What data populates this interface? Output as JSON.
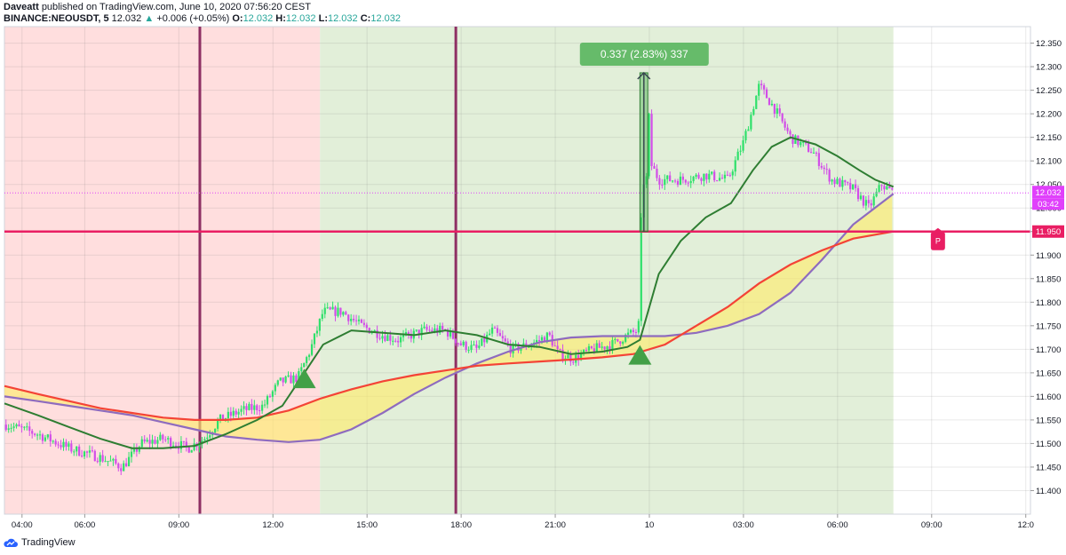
{
  "header": {
    "publisher": "Daveatt",
    "published_text": "published on TradingView.com, June 10, 2020 07:56:20 CEST",
    "symbol": "BINANCE:NEOUSDT, 5",
    "last": "12.032",
    "change_arrow": "▲",
    "change": "+0.006 (+0.05%)",
    "o_label": "O:",
    "o": "12.032",
    "h_label": "H:",
    "h": "12.032",
    "l_label": "L:",
    "l": "12.032",
    "c_label": "C:",
    "c": "12.032"
  },
  "measure_label": "0.337 (2.83%) 337",
  "price_badge": "12.032",
  "countdown_badge": "03:42",
  "marker_label": "P",
  "footer": {
    "brand": "TradingView"
  },
  "colors": {
    "up": "#26a69a",
    "price_badge": "#e040fb",
    "hline": "#e91e63",
    "fast_ma": "#2e7d32",
    "slow_upper": "#f44336",
    "slow_lower": "#8e6bbf",
    "cloud": "#fdeb6f",
    "bg_red": "#ffdede",
    "bg_green": "#e2efd9",
    "session_line": "#8e2f63"
  },
  "chart_data": {
    "type": "candlestick",
    "symbol": "NEOUSDT",
    "exchange": "BINANCE",
    "interval_minutes": 5,
    "y_ticks": [
      "12.350",
      "12.300",
      "12.250",
      "12.200",
      "12.150",
      "12.100",
      "12.050",
      "12.000",
      "11.950",
      "11.900",
      "11.850",
      "11.800",
      "11.750",
      "11.700",
      "11.650",
      "11.600",
      "11.550",
      "11.500",
      "11.450",
      "11.400"
    ],
    "ylim": [
      11.35,
      12.385
    ],
    "x_ticks": [
      "04:00",
      "06:00",
      "09:00",
      "12:00",
      "15:00",
      "18:00",
      "21:00",
      "10",
      "03:00",
      "06:00",
      "09:00",
      "12:0"
    ],
    "x_tick_hours": [
      4,
      6,
      9,
      12,
      15,
      18,
      21,
      24,
      27,
      30,
      33,
      36
    ],
    "xlim_hours": [
      3.44,
      36.15
    ],
    "data_end_hour": 31.78,
    "horizontal_level": 11.95,
    "last_price": 12.032,
    "session_lines_hours": [
      9.67,
      17.83
    ],
    "background_zones": [
      {
        "from_hour": 3.44,
        "to_hour": 13.5,
        "color": "red"
      },
      {
        "from_hour": 13.5,
        "to_hour": 31.78,
        "color": "green"
      }
    ],
    "close_path": [
      [
        3.5,
        11.54
      ],
      [
        4.5,
        11.52
      ],
      [
        5.5,
        11.49
      ],
      [
        6.5,
        11.47
      ],
      [
        7.2,
        11.45
      ],
      [
        7.8,
        11.5
      ],
      [
        8.5,
        11.51
      ],
      [
        9.3,
        11.49
      ],
      [
        9.8,
        11.51
      ],
      [
        10.3,
        11.55
      ],
      [
        11.0,
        11.57
      ],
      [
        11.7,
        11.58
      ],
      [
        12.2,
        11.63
      ],
      [
        12.8,
        11.64
      ],
      [
        13.2,
        11.7
      ],
      [
        13.6,
        11.78
      ],
      [
        14.2,
        11.78
      ],
      [
        14.8,
        11.75
      ],
      [
        15.5,
        11.73
      ],
      [
        16.0,
        11.72
      ],
      [
        16.8,
        11.74
      ],
      [
        17.5,
        11.74
      ],
      [
        18.0,
        11.71
      ],
      [
        18.5,
        11.7
      ],
      [
        19.0,
        11.74
      ],
      [
        19.6,
        11.7
      ],
      [
        20.2,
        11.71
      ],
      [
        20.8,
        11.73
      ],
      [
        21.1,
        11.69
      ],
      [
        21.6,
        11.68
      ],
      [
        22.2,
        11.7
      ],
      [
        22.8,
        11.71
      ],
      [
        23.3,
        11.73
      ],
      [
        23.65,
        11.74
      ],
      [
        23.8,
        12.02
      ],
      [
        24.0,
        12.1
      ],
      [
        24.3,
        12.06
      ],
      [
        25.0,
        12.06
      ],
      [
        25.8,
        12.07
      ],
      [
        26.5,
        12.06
      ],
      [
        27.0,
        12.14
      ],
      [
        27.5,
        12.26
      ],
      [
        28.0,
        12.21
      ],
      [
        28.5,
        12.15
      ],
      [
        29.2,
        12.12
      ],
      [
        29.8,
        12.06
      ],
      [
        30.5,
        12.04
      ],
      [
        31.0,
        12.0
      ],
      [
        31.4,
        12.05
      ],
      [
        31.78,
        12.032
      ]
    ],
    "fast_ma": [
      [
        3.44,
        11.585
      ],
      [
        4.5,
        11.56
      ],
      [
        5.5,
        11.535
      ],
      [
        6.5,
        11.51
      ],
      [
        7.5,
        11.49
      ],
      [
        8.5,
        11.49
      ],
      [
        9.5,
        11.495
      ],
      [
        10.5,
        11.52
      ],
      [
        11.5,
        11.55
      ],
      [
        12.3,
        11.58
      ],
      [
        13.0,
        11.65
      ],
      [
        13.6,
        11.71
      ],
      [
        14.5,
        11.74
      ],
      [
        15.5,
        11.735
      ],
      [
        16.5,
        11.73
      ],
      [
        17.5,
        11.74
      ],
      [
        18.5,
        11.73
      ],
      [
        19.5,
        11.71
      ],
      [
        20.5,
        11.705
      ],
      [
        21.5,
        11.69
      ],
      [
        22.5,
        11.695
      ],
      [
        23.3,
        11.705
      ],
      [
        23.7,
        11.72
      ],
      [
        24.3,
        11.86
      ],
      [
        25.0,
        11.93
      ],
      [
        25.8,
        11.98
      ],
      [
        26.6,
        12.01
      ],
      [
        27.3,
        12.08
      ],
      [
        27.9,
        12.13
      ],
      [
        28.5,
        12.15
      ],
      [
        29.3,
        12.135
      ],
      [
        30.0,
        12.11
      ],
      [
        30.7,
        12.08
      ],
      [
        31.2,
        12.06
      ],
      [
        31.78,
        12.045
      ]
    ],
    "slow_upper": [
      [
        3.44,
        11.622
      ],
      [
        4.5,
        11.605
      ],
      [
        5.5,
        11.59
      ],
      [
        6.5,
        11.575
      ],
      [
        7.5,
        11.565
      ],
      [
        8.5,
        11.555
      ],
      [
        9.5,
        11.55
      ],
      [
        10.5,
        11.55
      ],
      [
        11.5,
        11.555
      ],
      [
        12.5,
        11.57
      ],
      [
        13.5,
        11.595
      ],
      [
        14.5,
        11.615
      ],
      [
        15.5,
        11.632
      ],
      [
        16.5,
        11.645
      ],
      [
        17.5,
        11.655
      ],
      [
        18.5,
        11.665
      ],
      [
        19.5,
        11.67
      ],
      [
        20.5,
        11.674
      ],
      [
        21.5,
        11.678
      ],
      [
        22.5,
        11.683
      ],
      [
        23.5,
        11.69
      ],
      [
        24.5,
        11.71
      ],
      [
        25.5,
        11.75
      ],
      [
        26.5,
        11.79
      ],
      [
        27.5,
        11.84
      ],
      [
        28.5,
        11.88
      ],
      [
        29.5,
        11.91
      ],
      [
        30.5,
        11.935
      ],
      [
        31.78,
        11.95
      ]
    ],
    "slow_lower": [
      [
        3.44,
        11.6
      ],
      [
        4.5,
        11.59
      ],
      [
        5.5,
        11.58
      ],
      [
        6.5,
        11.57
      ],
      [
        7.5,
        11.56
      ],
      [
        8.5,
        11.545
      ],
      [
        9.5,
        11.53
      ],
      [
        10.5,
        11.515
      ],
      [
        11.5,
        11.508
      ],
      [
        12.5,
        11.503
      ],
      [
        13.5,
        11.508
      ],
      [
        14.5,
        11.53
      ],
      [
        15.5,
        11.565
      ],
      [
        16.5,
        11.605
      ],
      [
        17.5,
        11.64
      ],
      [
        18.5,
        11.67
      ],
      [
        19.5,
        11.695
      ],
      [
        20.5,
        11.715
      ],
      [
        21.5,
        11.725
      ],
      [
        22.5,
        11.728
      ],
      [
        23.5,
        11.728
      ],
      [
        24.5,
        11.728
      ],
      [
        25.5,
        11.735
      ],
      [
        26.5,
        11.75
      ],
      [
        27.5,
        11.775
      ],
      [
        28.5,
        11.82
      ],
      [
        29.5,
        11.89
      ],
      [
        30.5,
        11.965
      ],
      [
        31.78,
        12.03
      ]
    ],
    "buy_signals": [
      [
        13.0,
        11.64
      ],
      [
        23.7,
        11.69
      ]
    ],
    "measure": {
      "from_hour": 23.7,
      "to_hour": 23.95,
      "low": 11.95,
      "high": 12.287,
      "text": "0.337 (2.83%) 337"
    },
    "marker": {
      "hour": 33.2,
      "price": 11.935,
      "text": "P"
    }
  }
}
